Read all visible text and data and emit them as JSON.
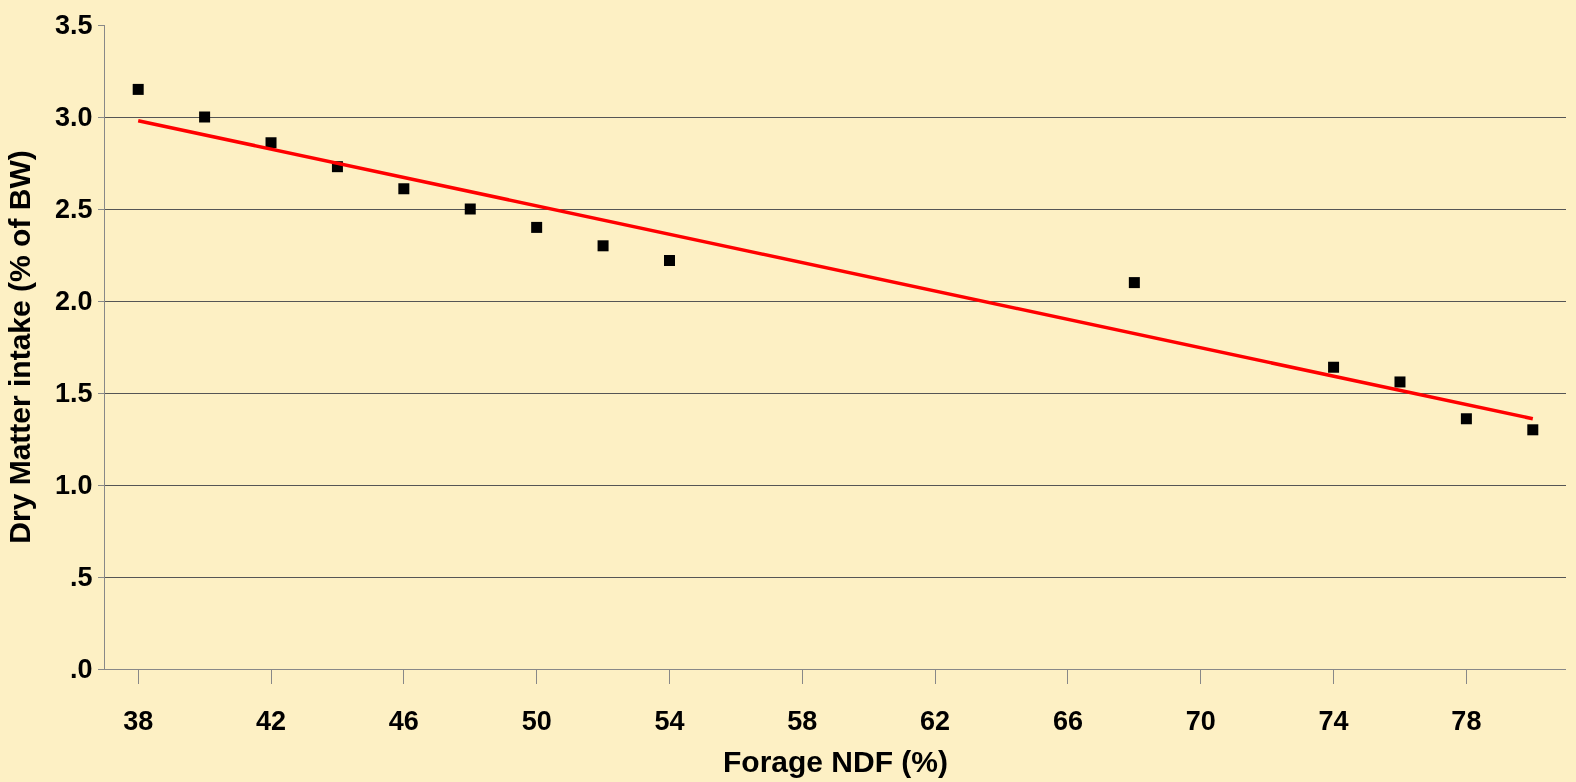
{
  "chart_data": {
    "type": "scatter",
    "xlabel": "Forage NDF (%)",
    "ylabel": "Dry Matter intake (% of BW)",
    "x": [
      38,
      40,
      42,
      44,
      46,
      48,
      50,
      52,
      54,
      68,
      74,
      76,
      78,
      80
    ],
    "series": [
      {
        "color": "#000000",
        "marker": "square",
        "values": [
          3.15,
          3.0,
          2.86,
          2.73,
          2.61,
          2.5,
          2.4,
          2.3,
          2.22,
          2.1,
          1.64,
          1.56,
          1.36,
          1.3
        ]
      },
      {
        "color": "#ff0000",
        "type": "line",
        "marker": "none",
        "x": [
          38,
          80
        ],
        "values": [
          2.98,
          1.36
        ]
      }
    ],
    "xlim": [
      37,
      81
    ],
    "xticks": [
      38,
      42,
      46,
      50,
      54,
      58,
      62,
      66,
      70,
      74,
      78
    ],
    "ylim": [
      0,
      3.5
    ],
    "yticks": [
      {
        "value": 0,
        "label": ".0"
      },
      {
        "value": 0.5,
        "label": ".5"
      },
      {
        "value": 1,
        "label": "1.0"
      },
      {
        "value": 1.5,
        "label": "1.5"
      },
      {
        "value": 2,
        "label": "2.0"
      },
      {
        "value": 2.5,
        "label": "2.5"
      },
      {
        "value": 3,
        "label": "3.0"
      },
      {
        "value": 3.5,
        "label": "3.5"
      }
    ],
    "grid": "y"
  }
}
